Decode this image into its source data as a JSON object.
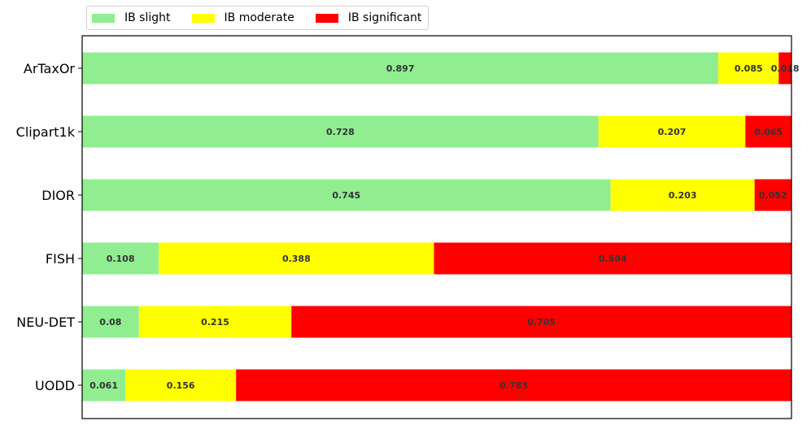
{
  "chart_data": {
    "type": "bar",
    "orientation": "horizontal",
    "stacked": true,
    "categories": [
      "ArTaxOr",
      "Clipart1k",
      "DIOR",
      "FISH",
      "NEU-DET",
      "UODD"
    ],
    "series": [
      {
        "name": "IB slight",
        "color": "#90ee90",
        "values": [
          0.897,
          0.728,
          0.745,
          0.108,
          0.08,
          0.061
        ]
      },
      {
        "name": "IB moderate",
        "color": "#ffff00",
        "values": [
          0.085,
          0.207,
          0.203,
          0.388,
          0.215,
          0.156
        ]
      },
      {
        "name": "IB significant",
        "color": "#ff0000",
        "values": [
          0.018,
          0.065,
          0.052,
          0.504,
          0.705,
          0.783
        ]
      }
    ],
    "xlim": [
      0,
      1
    ],
    "x_axis_visible": false,
    "grid": false,
    "legend": "top-left, above plot"
  }
}
